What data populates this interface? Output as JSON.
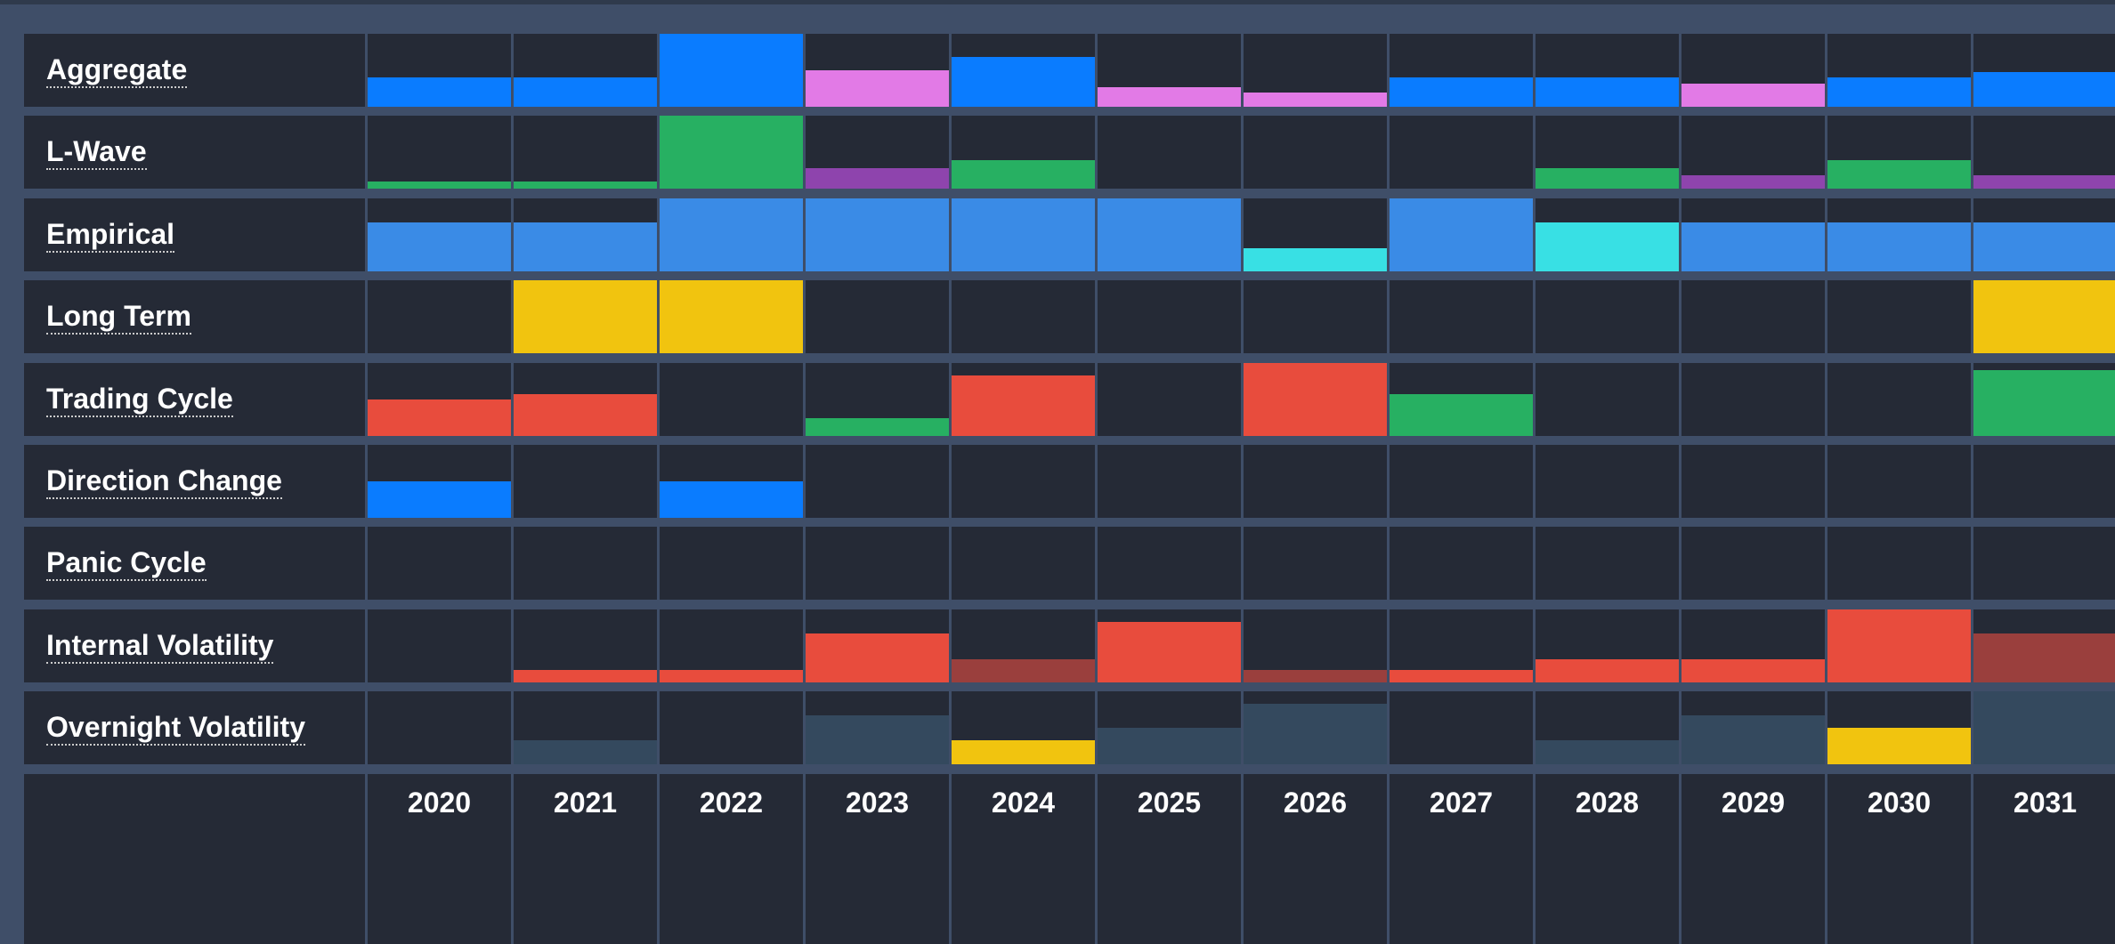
{
  "years": [
    "2020",
    "2021",
    "2022",
    "2023",
    "2024",
    "2025",
    "2026",
    "2027",
    "2028",
    "2029",
    "2030",
    "2031"
  ],
  "rows": [
    {
      "label": "Aggregate",
      "cells": [
        {
          "value": 40,
          "color": "#0a7cff"
        },
        {
          "value": 40,
          "color": "#0a7cff"
        },
        {
          "value": 100,
          "color": "#0a7cff"
        },
        {
          "value": 50,
          "color": "#e27ae6"
        },
        {
          "value": 68,
          "color": "#0a7cff"
        },
        {
          "value": 27,
          "color": "#e27ae6"
        },
        {
          "value": 19,
          "color": "#e27ae6"
        },
        {
          "value": 40,
          "color": "#0a7cff"
        },
        {
          "value": 40,
          "color": "#0a7cff"
        },
        {
          "value": 32,
          "color": "#e27ae6"
        },
        {
          "value": 40,
          "color": "#0a7cff"
        },
        {
          "value": 47,
          "color": "#0a7cff"
        }
      ]
    },
    {
      "label": "L-Wave",
      "cells": [
        {
          "value": 10,
          "color": "#27b062"
        },
        {
          "value": 10,
          "color": "#27b062"
        },
        {
          "value": 100,
          "color": "#27b062"
        },
        {
          "value": 28,
          "color": "#8e44ad"
        },
        {
          "value": 39,
          "color": "#27b062"
        },
        {
          "value": 0
        },
        {
          "value": 0
        },
        {
          "value": 0
        },
        {
          "value": 28,
          "color": "#27b062"
        },
        {
          "value": 19,
          "color": "#8e44ad"
        },
        {
          "value": 39,
          "color": "#27b062"
        },
        {
          "value": 19,
          "color": "#8e44ad"
        }
      ]
    },
    {
      "label": "Empirical",
      "cells": [
        {
          "value": 67,
          "color": "#3a8be6"
        },
        {
          "value": 67,
          "color": "#3a8be6"
        },
        {
          "value": 100,
          "color": "#3a8be6"
        },
        {
          "value": 100,
          "color": "#3a8be6"
        },
        {
          "value": 100,
          "color": "#3a8be6"
        },
        {
          "value": 100,
          "color": "#3a8be6"
        },
        {
          "value": 31,
          "color": "#38e0e4"
        },
        {
          "value": 100,
          "color": "#3a8be6"
        },
        {
          "value": 67,
          "color": "#38e0e4"
        },
        {
          "value": 67,
          "color": "#3a8be6"
        },
        {
          "value": 67,
          "color": "#3a8be6"
        },
        {
          "value": 67,
          "color": "#3a8be6"
        }
      ]
    },
    {
      "label": "Long Term",
      "cells": [
        {
          "value": 0
        },
        {
          "value": 100,
          "color": "#f1c40f"
        },
        {
          "value": 100,
          "color": "#f1c40f"
        },
        {
          "value": 0
        },
        {
          "value": 0
        },
        {
          "value": 0
        },
        {
          "value": 0
        },
        {
          "value": 0
        },
        {
          "value": 0
        },
        {
          "value": 0
        },
        {
          "value": 0
        },
        {
          "value": 100,
          "color": "#f1c40f"
        }
      ]
    },
    {
      "label": "Trading Cycle",
      "cells": [
        {
          "value": 50,
          "color": "#e84c3d"
        },
        {
          "value": 57,
          "color": "#e84c3d"
        },
        {
          "value": 0
        },
        {
          "value": 24,
          "color": "#27b062"
        },
        {
          "value": 83,
          "color": "#e84c3d"
        },
        {
          "value": 0
        },
        {
          "value": 100,
          "color": "#e84c3d"
        },
        {
          "value": 57,
          "color": "#27b062"
        },
        {
          "value": 0
        },
        {
          "value": 0
        },
        {
          "value": 0
        },
        {
          "value": 90,
          "color": "#27b062"
        }
      ]
    },
    {
      "label": "Direction Change",
      "cells": [
        {
          "value": 50,
          "color": "#0a7cff"
        },
        {
          "value": 0
        },
        {
          "value": 50,
          "color": "#0a7cff"
        },
        {
          "value": 0
        },
        {
          "value": 0
        },
        {
          "value": 0
        },
        {
          "value": 0
        },
        {
          "value": 0
        },
        {
          "value": 0
        },
        {
          "value": 0
        },
        {
          "value": 0
        },
        {
          "value": 0
        }
      ]
    },
    {
      "label": "Panic Cycle",
      "cells": [
        {
          "value": 0
        },
        {
          "value": 0
        },
        {
          "value": 0
        },
        {
          "value": 0
        },
        {
          "value": 0
        },
        {
          "value": 0
        },
        {
          "value": 0
        },
        {
          "value": 0
        },
        {
          "value": 0
        },
        {
          "value": 0
        },
        {
          "value": 0
        },
        {
          "value": 0
        }
      ]
    },
    {
      "label": "Internal Volatility",
      "cells": [
        {
          "value": 0
        },
        {
          "value": 17,
          "color": "#e84c3d"
        },
        {
          "value": 17,
          "color": "#e84c3d"
        },
        {
          "value": 67,
          "color": "#e84c3d"
        },
        {
          "value": 31,
          "color": "#9a3f3d"
        },
        {
          "value": 83,
          "color": "#e84c3d"
        },
        {
          "value": 17,
          "color": "#9a3f3d"
        },
        {
          "value": 17,
          "color": "#e84c3d"
        },
        {
          "value": 31,
          "color": "#e84c3d"
        },
        {
          "value": 31,
          "color": "#e84c3d"
        },
        {
          "value": 100,
          "color": "#e84c3d"
        },
        {
          "value": 67,
          "color": "#9a3f3d"
        }
      ]
    },
    {
      "label": "Overnight Volatility",
      "cells": [
        {
          "value": 0
        },
        {
          "value": 33,
          "color": "#34495e"
        },
        {
          "value": 0
        },
        {
          "value": 67,
          "color": "#34495e"
        },
        {
          "value": 33,
          "color": "#f1c40f"
        },
        {
          "value": 50,
          "color": "#34495e"
        },
        {
          "value": 83,
          "color": "#34495e"
        },
        {
          "value": 0
        },
        {
          "value": 33,
          "color": "#34495e"
        },
        {
          "value": 67,
          "color": "#34495e"
        },
        {
          "value": 50,
          "color": "#f1c40f"
        },
        {
          "value": 100,
          "color": "#34495e"
        }
      ]
    }
  ]
}
